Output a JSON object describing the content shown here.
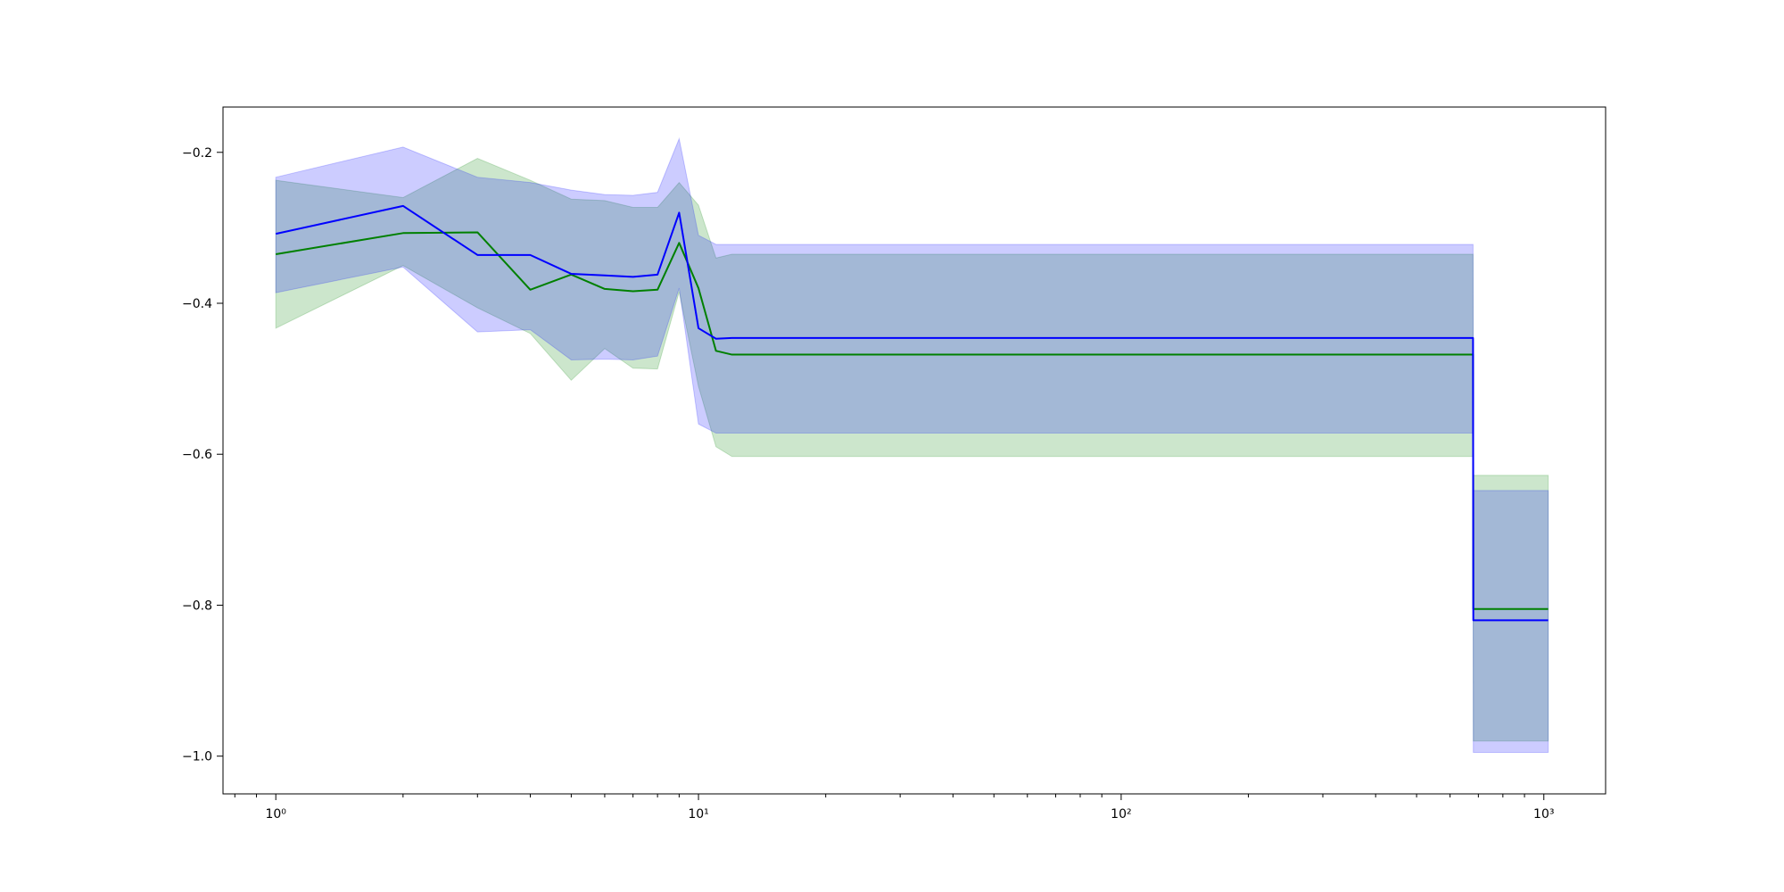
{
  "chart_data": {
    "type": "line",
    "title": "",
    "xlabel": "",
    "ylabel": "",
    "xscale": "log",
    "xlim": [
      0.75,
      1400
    ],
    "ylim": [
      -1.05,
      -0.14
    ],
    "grid": false,
    "xticks": [
      {
        "value": 1,
        "label": "10⁰"
      },
      {
        "value": 10,
        "label": "10¹"
      },
      {
        "value": 100,
        "label": "10²"
      },
      {
        "value": 1000,
        "label": "10³"
      }
    ],
    "yticks": [
      {
        "value": -0.2,
        "label": "−0.2"
      },
      {
        "value": -0.4,
        "label": "−0.4"
      },
      {
        "value": -0.6,
        "label": "−0.6"
      },
      {
        "value": -0.8,
        "label": "−0.8"
      },
      {
        "value": -1.0,
        "label": "−1.0"
      }
    ],
    "series": [
      {
        "color": "#008000",
        "band_color": "#008000",
        "x": [
          1,
          2,
          3,
          4,
          5,
          6,
          7,
          8,
          9,
          10,
          11,
          12,
          680,
          681,
          1024
        ],
        "y": [
          -0.335,
          -0.307,
          -0.306,
          -0.382,
          -0.362,
          -0.381,
          -0.384,
          -0.382,
          -0.32,
          -0.38,
          -0.463,
          -0.468,
          -0.468,
          -0.805,
          -0.805
        ],
        "lower": [
          -0.433,
          -0.35,
          -0.406,
          -0.44,
          -0.502,
          -0.46,
          -0.486,
          -0.487,
          -0.385,
          -0.51,
          -0.59,
          -0.603,
          -0.603,
          -0.98,
          -0.98
        ],
        "upper": [
          -0.237,
          -0.26,
          -0.208,
          -0.237,
          -0.262,
          -0.264,
          -0.273,
          -0.273,
          -0.24,
          -0.27,
          -0.34,
          -0.335,
          -0.335,
          -0.628,
          -0.628
        ]
      },
      {
        "color": "#0000ff",
        "band_color": "#0000ff",
        "x": [
          1,
          2,
          3,
          4,
          5,
          6,
          7,
          8,
          9,
          10,
          11,
          12,
          680,
          681,
          1024
        ],
        "y": [
          -0.308,
          -0.271,
          -0.336,
          -0.336,
          -0.361,
          -0.363,
          -0.365,
          -0.362,
          -0.28,
          -0.433,
          -0.447,
          -0.446,
          -0.446,
          -0.82,
          -0.82
        ],
        "lower": [
          -0.386,
          -0.352,
          -0.438,
          -0.435,
          -0.475,
          -0.474,
          -0.475,
          -0.47,
          -0.38,
          -0.56,
          -0.572,
          -0.572,
          -0.572,
          -0.995,
          -0.995
        ],
        "upper": [
          -0.233,
          -0.193,
          -0.233,
          -0.24,
          -0.25,
          -0.256,
          -0.257,
          -0.253,
          -0.182,
          -0.31,
          -0.322,
          -0.322,
          -0.322,
          -0.648,
          -0.648
        ]
      }
    ]
  }
}
